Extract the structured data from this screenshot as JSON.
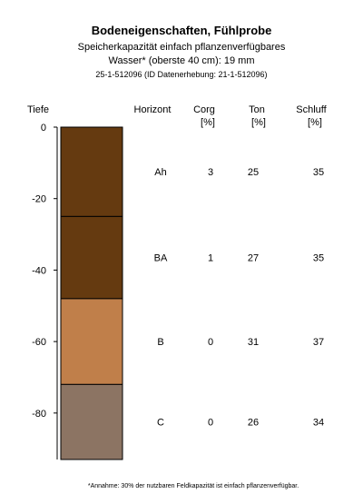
{
  "header": {
    "title": "Bodeneigenschaften, Fühlprobe",
    "subtitle_line1": "Speicherkapazität einfach pflanzenverfügbares",
    "subtitle_line2": "Wasser* (oberste 40 cm): 19 mm",
    "id_line": "25-1-512096 (ID Datenerhebung: 21-1-512096)"
  },
  "footnote": "*Annahme: 30% der nutzbaren Feldkapazität ist einfach pflanzenverfügbar.",
  "chart_data": {
    "type": "table",
    "ylabel": "Tiefe",
    "ylim": [
      0,
      -93
    ],
    "yticks": [
      0,
      -20,
      -40,
      -60,
      -80
    ],
    "columns": [
      {
        "key": "horizon",
        "label": "Horizont",
        "unit": ""
      },
      {
        "key": "corg",
        "label": "Corg",
        "unit": "[%]"
      },
      {
        "key": "ton",
        "label": "Ton",
        "unit": "[%]"
      },
      {
        "key": "schluff",
        "label": "Schluff",
        "unit": "[%]"
      }
    ],
    "layers": [
      {
        "horizon": "Ah",
        "top": 0,
        "bottom": -25,
        "color": "#653a10",
        "corg": "3",
        "ton": "25",
        "schluff": "35"
      },
      {
        "horizon": "BA",
        "top": -25,
        "bottom": -48,
        "color": "#653a10",
        "corg": "1",
        "ton": "27",
        "schluff": "35"
      },
      {
        "horizon": "B",
        "top": -48,
        "bottom": -72,
        "color": "#c07f4a",
        "corg": "0",
        "ton": "31",
        "schluff": "37"
      },
      {
        "horizon": "C",
        "top": -72,
        "bottom": -93,
        "color": "#8c7463",
        "corg": "0",
        "ton": "26",
        "schluff": "34"
      }
    ]
  }
}
